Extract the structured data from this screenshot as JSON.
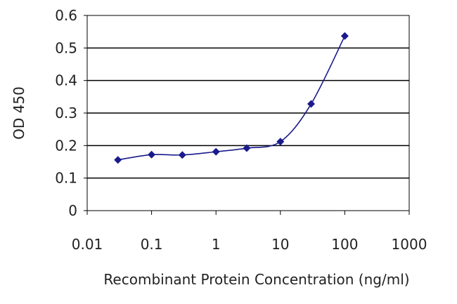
{
  "chart_data": {
    "type": "line",
    "title": "",
    "xlabel": "Recombinant Protein Concentration (ng/ml)",
    "ylabel": "OD 450",
    "x_scale": "log",
    "xlim": [
      0.01,
      1000
    ],
    "ylim": [
      0,
      0.6
    ],
    "x_ticks": [
      "0.01",
      "0.1",
      "1",
      "10",
      "100",
      "1000"
    ],
    "y_ticks": [
      "0",
      "0.1",
      "0.2",
      "0.3",
      "0.4",
      "0.5",
      "0.6"
    ],
    "grid": "horizontal",
    "series": [
      {
        "color": "#1a1a8c",
        "marker": "diamond",
        "x": [
          0.03,
          0.1,
          0.3,
          1,
          3,
          10,
          30,
          100
        ],
        "y": [
          0.156,
          0.172,
          0.171,
          0.181,
          0.192,
          0.212,
          0.328,
          0.537
        ]
      }
    ]
  }
}
